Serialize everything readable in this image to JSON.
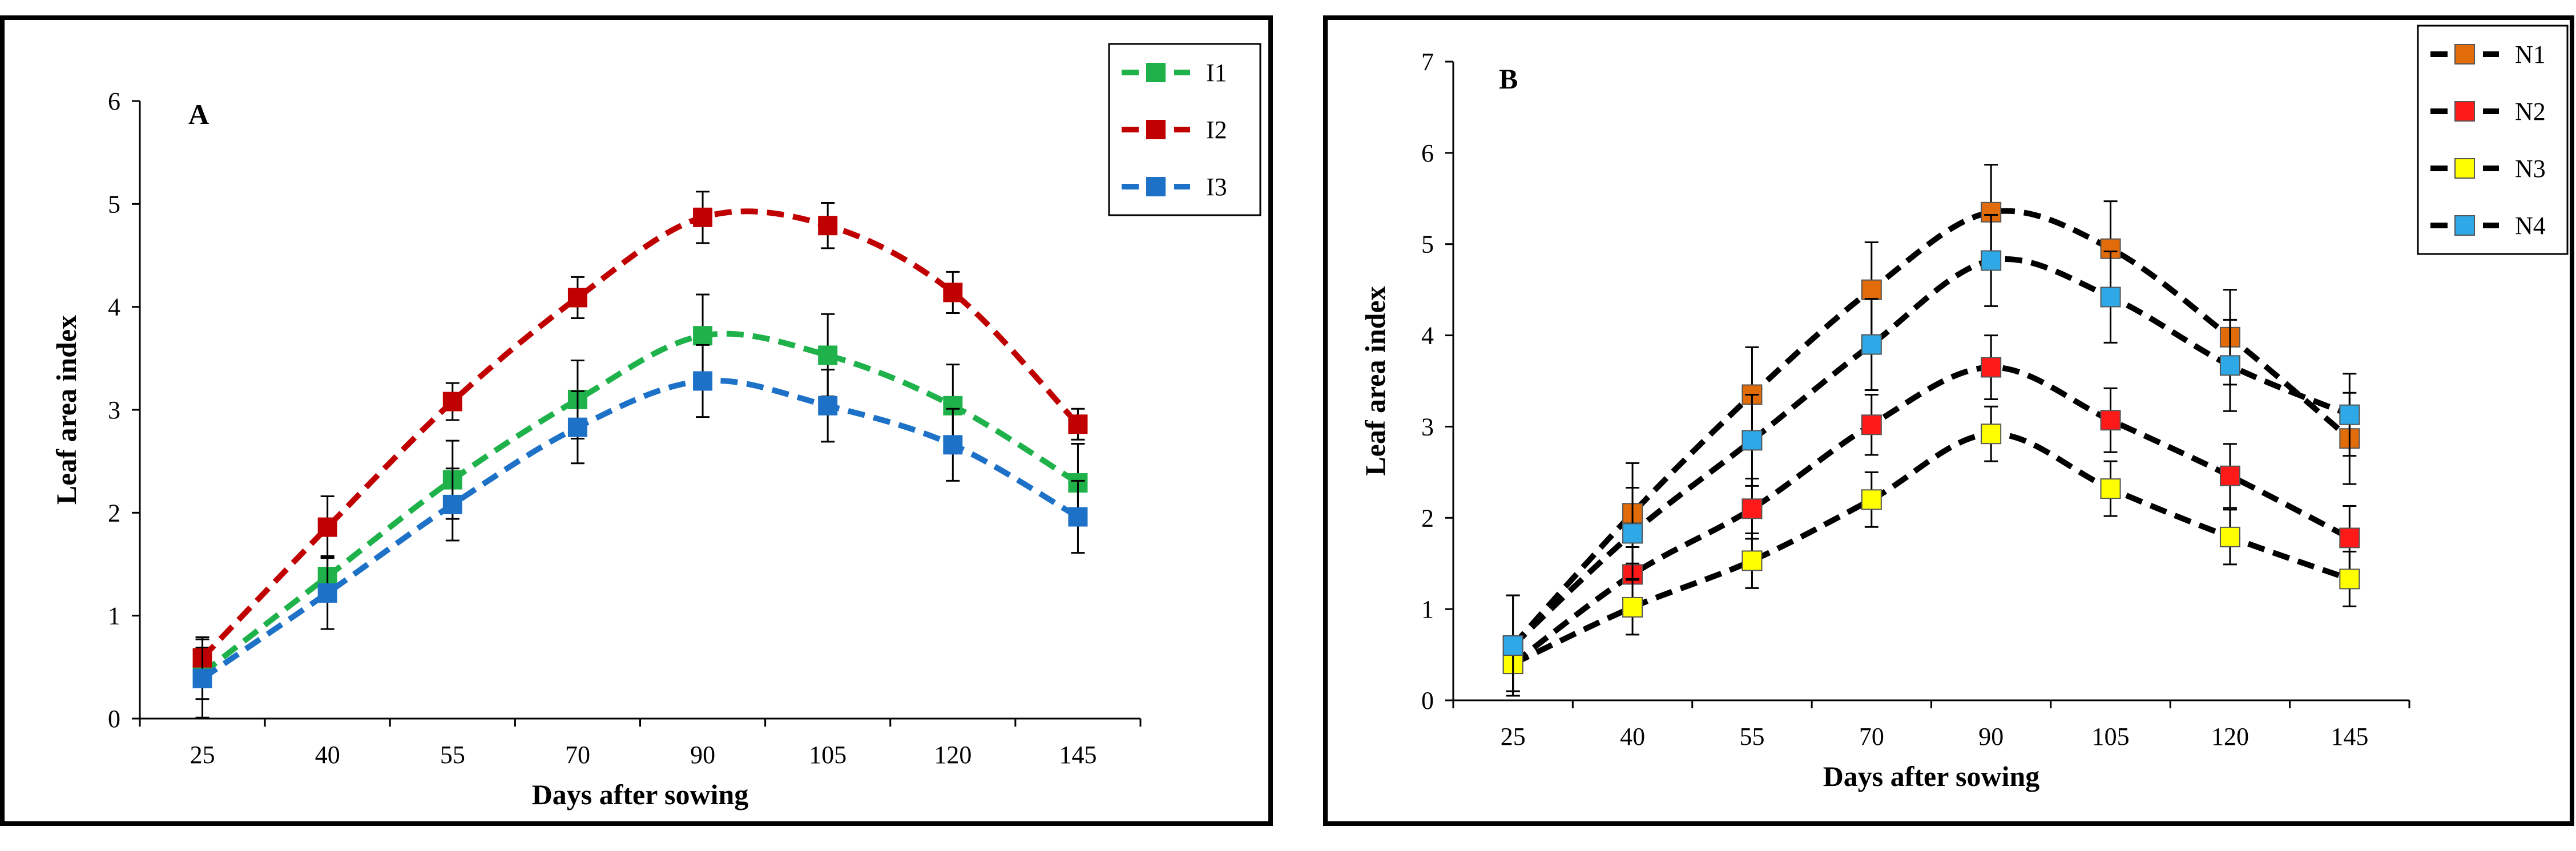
{
  "chart_data": [
    {
      "type": "line",
      "panel_label": "A",
      "xlabel": "Days after sowing",
      "ylabel": "Leaf area index",
      "categories": [
        "25",
        "40",
        "55",
        "70",
        "90",
        "105",
        "120",
        "145"
      ],
      "ylim": [
        0,
        6
      ],
      "yticks": [
        0,
        1,
        2,
        3,
        4,
        5,
        6
      ],
      "legend_position": "top-right",
      "series": [
        {
          "name": "I1",
          "color": "#1fb24a",
          "values": [
            0.44,
            1.38,
            2.32,
            3.1,
            3.72,
            3.53,
            3.04,
            2.29
          ],
          "errors": [
            0.25,
            0.2,
            0.38,
            0.38,
            0.4,
            0.4,
            0.4,
            0.38
          ]
        },
        {
          "name": "I2",
          "color": "#c00000",
          "values": [
            0.59,
            1.86,
            3.08,
            4.09,
            4.87,
            4.79,
            4.14,
            2.86
          ],
          "errors": [
            0.2,
            0.3,
            0.18,
            0.2,
            0.25,
            0.22,
            0.2,
            0.15
          ]
        },
        {
          "name": "I3",
          "color": "#1d72c8",
          "values": [
            0.39,
            1.22,
            2.08,
            2.83,
            3.28,
            3.04,
            2.66,
            1.96
          ],
          "errors": [
            0.38,
            0.35,
            0.35,
            0.35,
            0.35,
            0.35,
            0.35,
            0.35
          ]
        }
      ]
    },
    {
      "type": "line",
      "panel_label": "B",
      "xlabel": "Days after sowing",
      "ylabel": "Leaf area index",
      "categories": [
        "25",
        "40",
        "55",
        "70",
        "90",
        "105",
        "120",
        "145"
      ],
      "ylim": [
        0,
        7
      ],
      "yticks": [
        0,
        1,
        2,
        3,
        4,
        5,
        6,
        7
      ],
      "legend_position": "top-right",
      "series": [
        {
          "name": "N1",
          "color": "#e36c0a",
          "values": [
            0.6,
            2.05,
            3.35,
            4.5,
            5.35,
            4.95,
            3.98,
            2.87
          ],
          "errors": [
            0.55,
            0.55,
            0.52,
            0.52,
            0.52,
            0.52,
            0.52,
            0.5
          ]
        },
        {
          "name": "N2",
          "color": "#ff1a1a",
          "values": [
            0.4,
            1.38,
            2.1,
            3.02,
            3.65,
            3.07,
            2.46,
            1.78
          ],
          "errors": [
            0.3,
            0.3,
            0.33,
            0.33,
            0.35,
            0.35,
            0.35,
            0.35
          ]
        },
        {
          "name": "N3",
          "color": "#ffff00",
          "values": [
            0.4,
            1.02,
            1.53,
            2.2,
            2.92,
            2.32,
            1.79,
            1.33
          ],
          "errors": [
            0.3,
            0.3,
            0.3,
            0.3,
            0.3,
            0.3,
            0.3,
            0.3
          ]
        },
        {
          "name": "N4",
          "color": "#2ea8e6",
          "values": [
            0.6,
            1.83,
            2.85,
            3.9,
            4.82,
            4.42,
            3.67,
            3.13
          ],
          "errors": [
            0.55,
            0.5,
            0.5,
            0.5,
            0.5,
            0.5,
            0.5,
            0.45
          ]
        }
      ]
    }
  ]
}
